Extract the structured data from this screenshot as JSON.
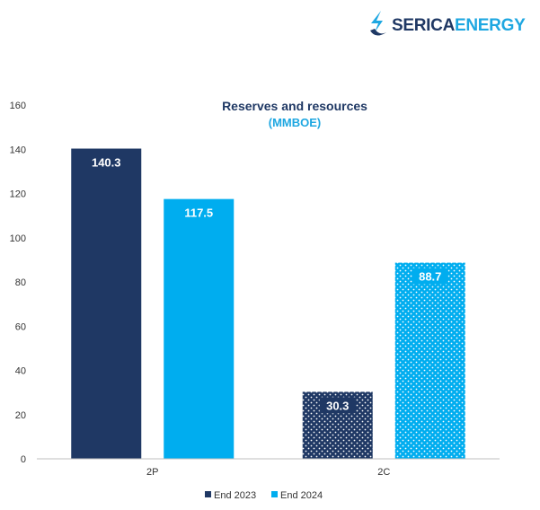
{
  "logo": {
    "text_a": "SERICA",
    "text_b": "ENERGY",
    "icon": "serica-swoosh-icon"
  },
  "colors": {
    "end2023": "#1f3864",
    "end2024": "#00adef",
    "axis": "#bfbfbf"
  },
  "chart_data": {
    "type": "bar",
    "title": "Reserves and resources",
    "subtitle": "(MMBOE)",
    "categories": [
      "2P",
      "2C"
    ],
    "series": [
      {
        "name": "End 2023",
        "values": [
          140.3,
          30.3
        ]
      },
      {
        "name": "End 2024",
        "values": [
          117.5,
          88.7
        ]
      }
    ],
    "patterned": [
      false,
      true
    ],
    "data_labels": [
      [
        "140.3",
        "30.3"
      ],
      [
        "117.5",
        "88.7"
      ]
    ],
    "ylim": [
      0,
      160
    ],
    "yticks": [
      0,
      20,
      40,
      60,
      80,
      100,
      120,
      140,
      160
    ],
    "grid": false,
    "legend": "bottom-center",
    "xlabel": "",
    "ylabel": ""
  }
}
